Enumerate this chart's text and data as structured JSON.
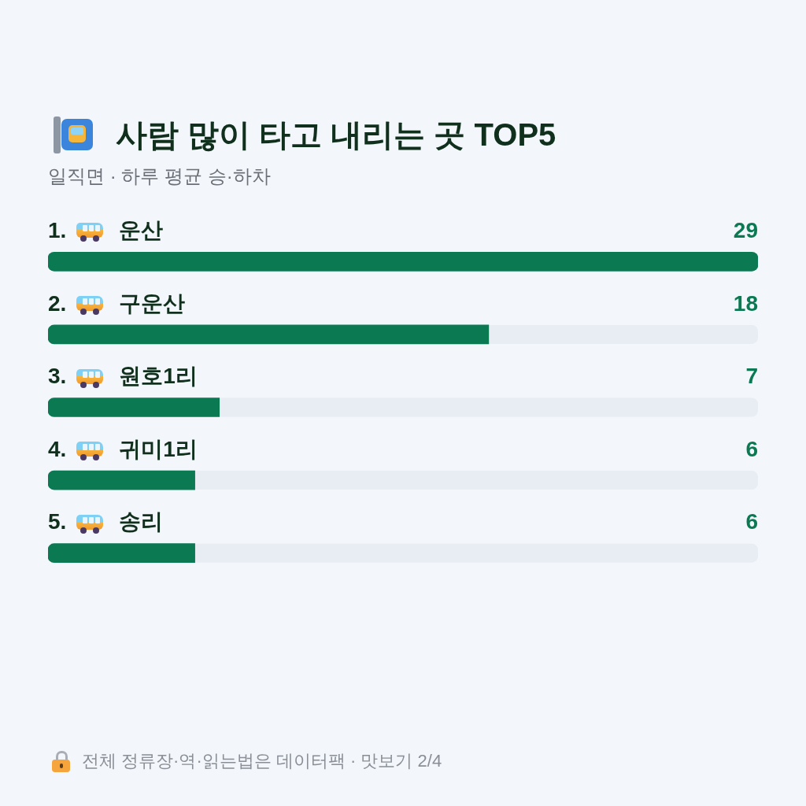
{
  "chart_data": {
    "type": "bar",
    "orientation": "horizontal",
    "title": "사람 많이 타고 내리는 곳 TOP5",
    "subtitle": "일직면 · 하루 평균 승·하차",
    "categories": [
      "1. 운산",
      "2. 구운산",
      "3. 원호1리",
      "4. 귀미1리",
      "5. 송리"
    ],
    "values": [
      29,
      18,
      7,
      6,
      6
    ],
    "color": "#0b7a52",
    "xlim": [
      0,
      29
    ],
    "data_labels": true,
    "tick_labels": "y",
    "annotations": [
      "전체 정류장·역·읽는법은 데이터팩 · 맛보기 2/4"
    ]
  }
}
